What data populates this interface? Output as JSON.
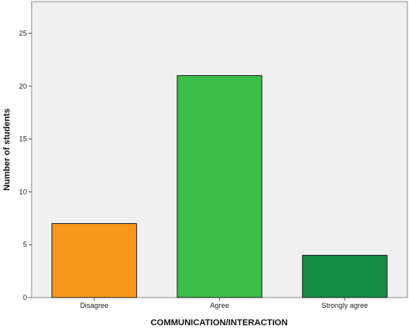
{
  "chart_data": {
    "type": "bar",
    "title": "",
    "xlabel": "COMMUNICATION/INTERACTION",
    "ylabel": "Number of students",
    "categories": [
      "Disagree",
      "Agree",
      "Strongly agree"
    ],
    "values": [
      7,
      21,
      4
    ],
    "bar_colors": [
      "#f7981d",
      "#39be49",
      "#148c46"
    ],
    "ylim": [
      0,
      28
    ],
    "yticks": [
      0,
      5,
      10,
      15,
      20,
      25
    ],
    "grid": false,
    "legend": "none",
    "plot_background": "#f0f0f0"
  }
}
